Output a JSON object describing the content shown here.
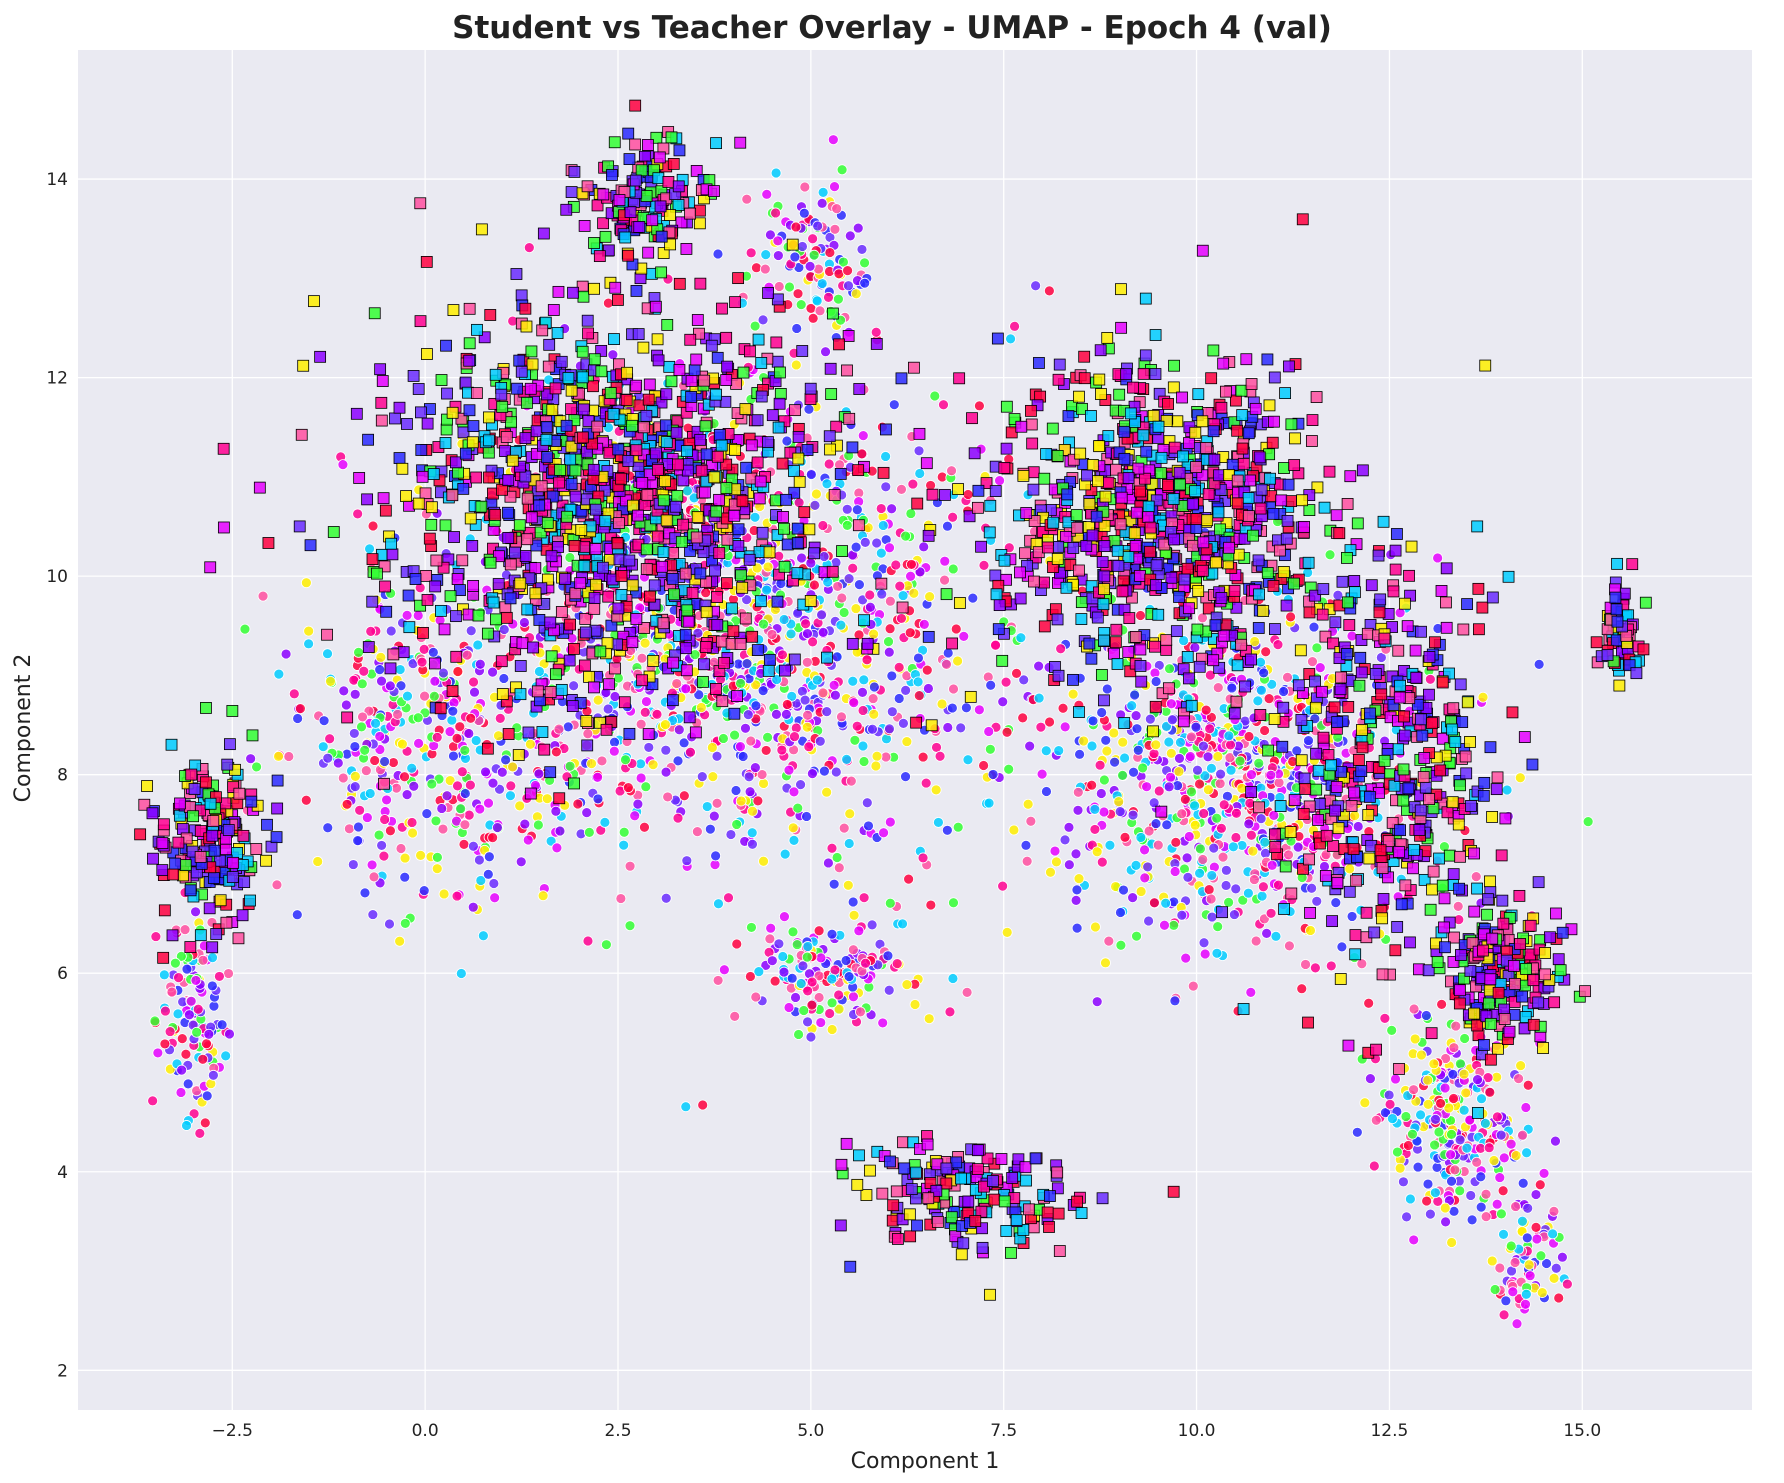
{
  "chart_data": {
    "type": "scatter",
    "title": "Student vs Teacher Overlay - UMAP - Epoch 4 (val)",
    "xlabel": "Component 1",
    "ylabel": "Component 2",
    "xlim": [
      -4.5,
      17.2
    ],
    "ylim": [
      1.6,
      15.3
    ],
    "xticks": [
      -2.5,
      0.0,
      2.5,
      5.0,
      7.5,
      10.0,
      12.5,
      15.0
    ],
    "xtick_labels": [
      "−2.5",
      "0.0",
      "2.5",
      "5.0",
      "7.5",
      "10.0",
      "12.5",
      "15.0"
    ],
    "yticks": [
      2,
      4,
      6,
      8,
      10,
      12,
      14
    ],
    "ytick_labels": [
      "2",
      "4",
      "6",
      "8",
      "10",
      "12",
      "14"
    ],
    "grid": true,
    "colors": {
      "plot_background": "#eaeaf2",
      "grid": "#ffffff",
      "marker_palette": [
        "#ff0040",
        "#e600ff",
        "#8c00ff",
        "#2a2aff",
        "#ff0090",
        "#00ccff",
        "#33ff33",
        "#ffee00",
        "#ff4fa0",
        "#6a2cff"
      ]
    },
    "series": [
      {
        "marker": "circle",
        "clusters": [
          {
            "cx": 4.0,
            "cy": 9.5,
            "sx": 3.0,
            "sy": 2.2,
            "n": 1400
          },
          {
            "cx": 10.5,
            "cy": 8.0,
            "sx": 2.2,
            "sy": 1.6,
            "n": 900
          },
          {
            "cx": 0.0,
            "cy": 8.3,
            "sx": 1.8,
            "sy": 1.5,
            "n": 400
          },
          {
            "cx": 13.3,
            "cy": 4.5,
            "sx": 0.9,
            "sy": 0.9,
            "n": 280
          },
          {
            "cx": -3.0,
            "cy": 5.6,
            "sx": 0.35,
            "sy": 1.0,
            "n": 120
          },
          {
            "cx": 5.0,
            "cy": 13.2,
            "sx": 0.7,
            "sy": 0.8,
            "n": 120
          },
          {
            "cx": 5.3,
            "cy": 6.0,
            "sx": 1.0,
            "sy": 0.5,
            "n": 160
          },
          {
            "cx": 14.3,
            "cy": 3.2,
            "sx": 0.4,
            "sy": 0.6,
            "n": 80
          }
        ]
      },
      {
        "marker": "square",
        "clusters": [
          {
            "cx": 2.5,
            "cy": 10.8,
            "sx": 2.6,
            "sy": 1.8,
            "n": 1300
          },
          {
            "cx": 9.5,
            "cy": 10.5,
            "sx": 2.0,
            "sy": 1.4,
            "n": 900
          },
          {
            "cx": 12.5,
            "cy": 8.0,
            "sx": 1.2,
            "sy": 1.8,
            "n": 450
          },
          {
            "cx": 14.0,
            "cy": 6.0,
            "sx": 0.7,
            "sy": 0.6,
            "n": 200
          },
          {
            "cx": -2.8,
            "cy": 7.3,
            "sx": 0.6,
            "sy": 0.8,
            "n": 200
          },
          {
            "cx": 2.8,
            "cy": 13.8,
            "sx": 0.8,
            "sy": 0.6,
            "n": 160
          },
          {
            "cx": 7.0,
            "cy": 3.8,
            "sx": 1.4,
            "sy": 0.5,
            "n": 180
          },
          {
            "cx": 15.5,
            "cy": 9.4,
            "sx": 0.25,
            "sy": 0.45,
            "n": 60
          }
        ]
      }
    ]
  }
}
